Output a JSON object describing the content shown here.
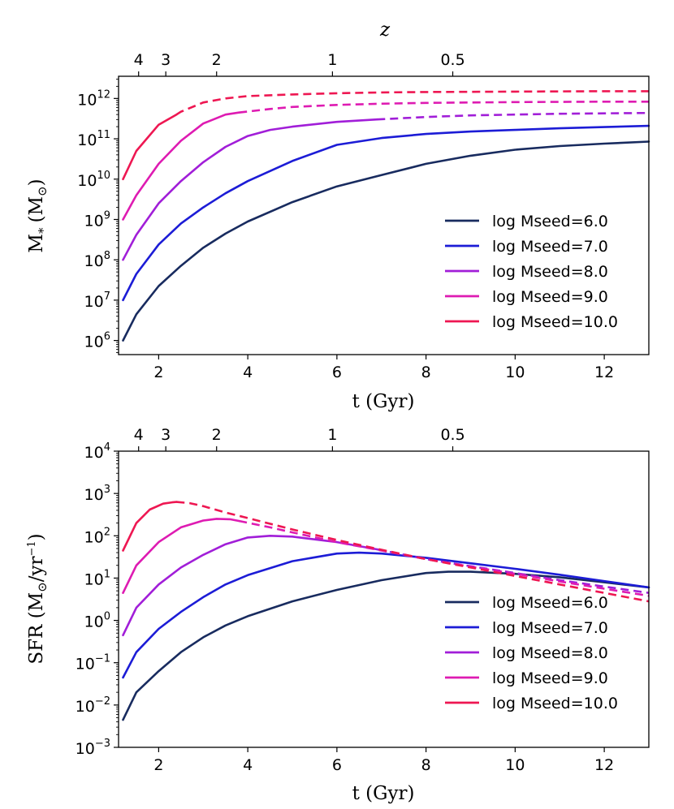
{
  "colors": {
    "Mseed6": "#182b5f",
    "Mseed7": "#1c1cd6",
    "Mseed8": "#a11ed8",
    "Mseed9": "#de1bb2",
    "Mseed10": "#ee1752"
  },
  "chart_data": [
    {
      "type": "line",
      "panel": "top",
      "xlabel": "t (Gyr)",
      "ylabel_parts": {
        "main": "M",
        "star": "*",
        "open": "(M",
        "sun": "⊙",
        "close": ")"
      },
      "top_axis_label": "z",
      "xlim": [
        1.1,
        13.0
      ],
      "ylim_log10": [
        5.65,
        12.55
      ],
      "x_ticks": [
        2,
        4,
        6,
        8,
        10,
        12
      ],
      "x_tick_labels": [
        "2",
        "4",
        "6",
        "8",
        "10",
        "12"
      ],
      "y_ticks_log10": [
        6,
        7,
        8,
        9,
        10,
        11,
        12
      ],
      "y_tick_base": "10",
      "y_tick_exps": [
        "6",
        "7",
        "8",
        "9",
        "10",
        "11",
        "12"
      ],
      "top_ticks_t": [
        1.55,
        2.16,
        3.3,
        5.9,
        8.6
      ],
      "top_tick_labels": [
        "4",
        "3",
        "2",
        "1",
        "0.5"
      ],
      "legend": [
        "log Mseed=6.0",
        "log Mseed=7.0",
        "log Mseed=8.0",
        "log Mseed=9.0",
        "log Mseed=10.0"
      ],
      "series": [
        {
          "name": "log Mseed=6.0",
          "color_key": "Mseed6",
          "t": [
            1.2,
            1.5,
            2,
            2.5,
            3,
            3.5,
            4,
            5,
            6,
            7,
            8,
            9,
            10,
            11,
            12,
            13
          ],
          "log_y": [
            6.0,
            6.65,
            7.35,
            7.85,
            8.3,
            8.65,
            8.95,
            9.43,
            9.82,
            10.1,
            10.38,
            10.58,
            10.73,
            10.82,
            10.88,
            10.93
          ],
          "dashed_after": null
        },
        {
          "name": "log Mseed=7.0",
          "color_key": "Mseed7",
          "t": [
            1.2,
            1.5,
            2,
            2.5,
            3,
            3.5,
            4,
            5,
            6,
            7,
            8,
            9,
            10,
            11,
            12,
            13
          ],
          "log_y": [
            7.0,
            7.65,
            8.38,
            8.9,
            9.3,
            9.65,
            9.95,
            10.45,
            10.85,
            11.02,
            11.12,
            11.18,
            11.22,
            11.26,
            11.29,
            11.32
          ],
          "dashed_after": null
        },
        {
          "name": "log Mseed=8.0",
          "color_key": "Mseed8",
          "t": [
            1.2,
            1.5,
            2,
            2.5,
            3,
            3.5,
            4,
            4.5,
            5,
            6,
            6.9,
            8,
            9,
            10,
            11,
            12,
            13
          ],
          "log_y": [
            8.0,
            8.62,
            9.4,
            9.95,
            10.42,
            10.8,
            11.07,
            11.22,
            11.3,
            11.42,
            11.48,
            11.54,
            11.58,
            11.6,
            11.62,
            11.63,
            11.64
          ],
          "dashed_after": 6.9
        },
        {
          "name": "log Mseed=9.0",
          "color_key": "Mseed9",
          "t": [
            1.2,
            1.5,
            2,
            2.5,
            3,
            3.5,
            3.8,
            4.5,
            5,
            6,
            7,
            8,
            10,
            12,
            13
          ],
          "log_y": [
            9.0,
            9.6,
            10.38,
            10.95,
            11.38,
            11.6,
            11.65,
            11.74,
            11.79,
            11.84,
            11.87,
            11.89,
            11.91,
            11.92,
            11.92
          ],
          "dashed_after": 3.8
        },
        {
          "name": "log Mseed=10.0",
          "color_key": "Mseed10",
          "t": [
            1.2,
            1.5,
            2,
            2.4,
            2.5,
            3,
            3.5,
            4,
            5,
            6,
            7,
            8,
            10,
            12,
            13
          ],
          "log_y": [
            10.0,
            10.7,
            11.35,
            11.6,
            11.67,
            11.9,
            12.0,
            12.06,
            12.1,
            12.13,
            12.15,
            12.16,
            12.17,
            12.18,
            12.18
          ],
          "dashed_after": 2.4
        }
      ]
    },
    {
      "type": "line",
      "panel": "bottom",
      "xlabel": "t (Gyr)",
      "ylabel_parts": {
        "main": "SFR (M",
        "sun": "⊙",
        "unit": "/yr",
        "exp": "−1",
        "close": ")"
      },
      "xlim": [
        1.1,
        13.0
      ],
      "ylim_log10": [
        -3,
        4
      ],
      "x_ticks": [
        2,
        4,
        6,
        8,
        10,
        12
      ],
      "x_tick_labels": [
        "2",
        "4",
        "6",
        "8",
        "10",
        "12"
      ],
      "y_ticks_log10": [
        -3,
        -2,
        -1,
        0,
        1,
        2,
        3,
        4
      ],
      "y_tick_base": "10",
      "y_tick_exps": [
        "−3",
        "−2",
        "−1",
        "0",
        "1",
        "2",
        "3",
        "4"
      ],
      "top_ticks_t": [
        1.55,
        2.16,
        3.3,
        5.9,
        8.6
      ],
      "top_tick_labels": [
        "4",
        "3",
        "2",
        "1",
        "0.5"
      ],
      "legend": [
        "log Mseed=6.0",
        "log Mseed=7.0",
        "log Mseed=8.0",
        "log Mseed=9.0",
        "log Mseed=10.0"
      ],
      "series": [
        {
          "name": "log Mseed=6.0",
          "color_key": "Mseed6",
          "t": [
            1.2,
            1.5,
            2,
            2.5,
            3,
            3.5,
            4,
            5,
            6,
            7,
            8,
            8.5,
            9,
            10,
            11,
            12,
            13
          ],
          "log_y": [
            -2.35,
            -1.7,
            -1.2,
            -0.75,
            -0.4,
            -0.12,
            0.1,
            0.45,
            0.72,
            0.95,
            1.12,
            1.15,
            1.15,
            1.1,
            1.02,
            0.9,
            0.78
          ],
          "dashed_after": null
        },
        {
          "name": "log Mseed=7.0",
          "color_key": "Mseed7",
          "t": [
            1.2,
            1.5,
            2,
            2.5,
            3,
            3.5,
            4,
            5,
            6,
            6.5,
            7,
            8,
            9,
            10,
            11,
            12,
            13
          ],
          "log_y": [
            -1.35,
            -0.75,
            -0.2,
            0.2,
            0.55,
            0.85,
            1.07,
            1.4,
            1.58,
            1.6,
            1.58,
            1.48,
            1.35,
            1.22,
            1.08,
            0.93,
            0.78
          ],
          "dashed_after": null
        },
        {
          "name": "log Mseed=8.0",
          "color_key": "Mseed8",
          "t": [
            1.2,
            1.5,
            2,
            2.5,
            3,
            3.5,
            4,
            4.5,
            5,
            6,
            6.9,
            8,
            9,
            10,
            11,
            12,
            13
          ],
          "log_y": [
            -0.35,
            0.3,
            0.85,
            1.25,
            1.55,
            1.8,
            1.96,
            2.0,
            1.98,
            1.85,
            1.68,
            1.45,
            1.28,
            1.12,
            0.95,
            0.8,
            0.65
          ],
          "dashed_after": 6.9
        },
        {
          "name": "log Mseed=9.0",
          "color_key": "Mseed9",
          "t": [
            1.2,
            1.5,
            2,
            2.5,
            3,
            3.3,
            3.6,
            3.8,
            4.5,
            5,
            6,
            7,
            8,
            9,
            10,
            11,
            12,
            13
          ],
          "log_y": [
            0.65,
            1.3,
            1.85,
            2.2,
            2.36,
            2.4,
            2.39,
            2.35,
            2.2,
            2.08,
            1.85,
            1.65,
            1.45,
            1.27,
            1.1,
            0.92,
            0.75,
            0.58
          ],
          "dashed_after": 3.8
        },
        {
          "name": "log Mseed=10.0",
          "color_key": "Mseed10",
          "t": [
            1.2,
            1.5,
            1.8,
            2.1,
            2.3,
            2.4,
            2.7,
            3,
            3.5,
            4,
            5,
            6,
            7,
            8,
            9,
            10,
            11,
            12,
            13
          ],
          "log_y": [
            1.65,
            2.3,
            2.62,
            2.76,
            2.79,
            2.8,
            2.77,
            2.7,
            2.55,
            2.42,
            2.15,
            1.9,
            1.67,
            1.45,
            1.25,
            1.05,
            0.85,
            0.65,
            0.45
          ],
          "dashed_after": 2.4
        }
      ]
    }
  ]
}
